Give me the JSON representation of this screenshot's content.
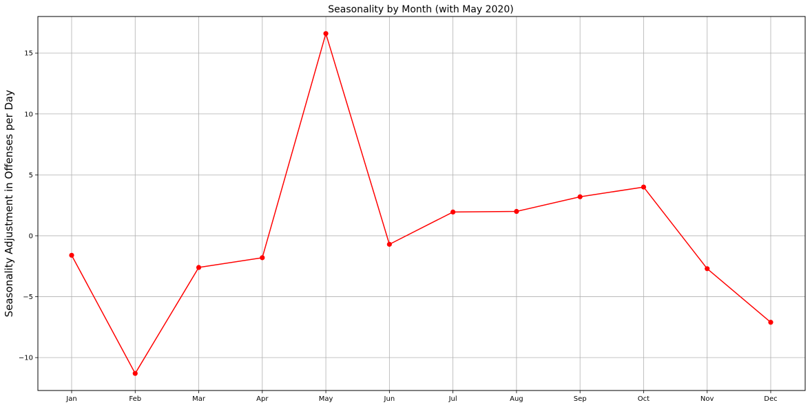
{
  "chart_data": {
    "type": "line",
    "title": "Seasonality by Month (with May 2020)",
    "xlabel": "",
    "ylabel": "Seasonality Adjustment in Offenses per Day",
    "categories": [
      "Jan",
      "Feb",
      "Mar",
      "Apr",
      "May",
      "Jun",
      "Jul",
      "Aug",
      "Sep",
      "Oct",
      "Nov",
      "Dec"
    ],
    "series": [
      {
        "color": "#ff0000",
        "marker": "circle",
        "values": [
          -1.6,
          -11.3,
          -2.6,
          -1.8,
          16.6,
          -0.7,
          1.95,
          2.0,
          3.2,
          4.0,
          -2.7,
          -7.1
        ]
      }
    ],
    "ylim": [
      -12.7,
      18.0
    ],
    "yticks": [
      -10,
      -5,
      0,
      5,
      10,
      15
    ],
    "ytick_labels": [
      "−10",
      "−5",
      "0",
      "5",
      "10",
      "15"
    ],
    "grid": true
  }
}
